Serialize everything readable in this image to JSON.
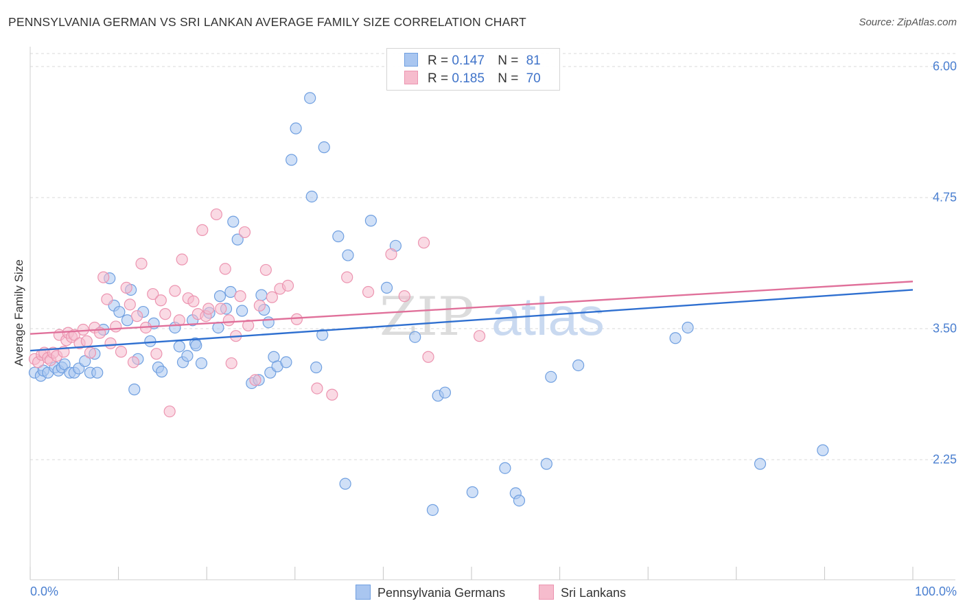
{
  "title": "PENNSYLVANIA GERMAN VS SRI LANKAN AVERAGE FAMILY SIZE CORRELATION CHART",
  "source": "Source: ZipAtlas.com",
  "watermark": "ZIPatlas",
  "colors": {
    "blue_fill": "#a9c6f0",
    "blue_stroke": "#6f9fe0",
    "blue_line": "#2e6fd0",
    "pink_fill": "#f6bccd",
    "pink_stroke": "#ec94b0",
    "pink_line": "#e0709a",
    "tick_text": "#4a7fd0",
    "grid": "#d9d9d9"
  },
  "legend": {
    "r1_label": "R =",
    "r1_value": "0.147",
    "n1_label": "N =",
    "n1_value": "81",
    "r2_label": "R =",
    "r2_value": "0.185",
    "n2_label": "N =",
    "n2_value": "70"
  },
  "bottom_legend": {
    "series1": "Pennsylvania Germans",
    "series2": "Sri Lankans"
  },
  "axis_text": {
    "ylabel": "Average Family Size",
    "x_min": "0.0%",
    "x_max": "100.0%",
    "y_ticks": [
      "6.00",
      "4.75",
      "3.50",
      "2.25"
    ]
  },
  "chart_data": {
    "type": "scatter",
    "title": "PENNSYLVANIA GERMAN VS SRI LANKAN AVERAGE FAMILY SIZE CORRELATION CHART",
    "xlabel": "",
    "ylabel": "Average Family Size",
    "xlim": [
      0,
      100
    ],
    "ylim": [
      1.25,
      6.25
    ],
    "y_ticks": [
      6.0,
      4.75,
      3.5,
      2.25
    ],
    "grid": true,
    "legend_placement": "top-center",
    "series": [
      {
        "name": "Pennsylvania Germans",
        "r": 0.147,
        "n": 81,
        "trend": [
          [
            0,
            3.29
          ],
          [
            100,
            3.87
          ]
        ],
        "x": [
          0.5,
          1.2,
          1.5,
          2,
          2.8,
          3.2,
          3.6,
          3.9,
          4.5,
          5,
          5.5,
          6.2,
          6.8,
          7.3,
          7.6,
          8.3,
          9,
          9.5,
          10.1,
          11,
          11.4,
          11.8,
          12.2,
          12.8,
          13.6,
          14,
          14.5,
          14.9,
          16.4,
          16.9,
          17.3,
          17.8,
          18.4,
          18.7,
          18.8,
          19.4,
          20.3,
          21.3,
          21.5,
          22.2,
          22.7,
          23,
          23.5,
          24,
          25.1,
          25.9,
          26.2,
          26.5,
          27,
          27.2,
          27.6,
          28,
          29,
          29.6,
          30.1,
          31.7,
          31.9,
          32.4,
          33.1,
          33.3,
          34.9,
          35.7,
          36,
          38.6,
          40.4,
          41.4,
          43.6,
          45.6,
          46.2,
          47,
          50.1,
          53.8,
          55,
          55.4,
          58.5,
          59,
          62.1,
          73.1,
          74.5,
          82.7,
          89.8
        ],
        "y": [
          3.08,
          3.05,
          3.1,
          3.08,
          3.13,
          3.1,
          3.13,
          3.16,
          3.08,
          3.08,
          3.12,
          3.19,
          3.08,
          3.26,
          3.08,
          3.49,
          3.98,
          3.72,
          3.66,
          3.58,
          3.87,
          2.92,
          3.21,
          3.66,
          3.38,
          3.55,
          3.13,
          3.09,
          3.51,
          3.33,
          3.18,
          3.24,
          3.58,
          3.36,
          3.34,
          3.17,
          3.65,
          3.51,
          3.81,
          3.69,
          3.85,
          4.52,
          4.35,
          3.67,
          2.98,
          3.01,
          3.82,
          3.68,
          3.56,
          3.08,
          3.23,
          3.14,
          3.18,
          5.11,
          5.41,
          5.7,
          4.76,
          3.13,
          3.44,
          5.23,
          4.38,
          2.02,
          4.2,
          4.53,
          3.89,
          4.29,
          3.42,
          1.77,
          2.86,
          2.89,
          1.94,
          2.17,
          1.93,
          1.86,
          2.21,
          3.04,
          3.15,
          3.41,
          3.51,
          2.21,
          2.34
        ]
      },
      {
        "name": "Sri Lankans",
        "r": 0.185,
        "n": 70,
        "trend": [
          [
            0,
            3.45
          ],
          [
            100,
            3.95
          ]
        ],
        "x": [
          0.5,
          0.9,
          1.3,
          1.6,
          2,
          2.3,
          2.6,
          3,
          3.3,
          3.8,
          4.1,
          4.3,
          4.7,
          5,
          5.6,
          6,
          6.4,
          6.8,
          7.3,
          7.9,
          8.3,
          8.7,
          9.1,
          9.7,
          10.3,
          10.9,
          11.3,
          11.7,
          12.1,
          12.6,
          13.1,
          13.9,
          14.3,
          14.8,
          15.3,
          15.8,
          16.4,
          16.9,
          17.2,
          17.9,
          18.5,
          19,
          19.5,
          19.9,
          20.2,
          21.1,
          21.6,
          22.1,
          22.5,
          22.8,
          23.3,
          23.8,
          24.3,
          24.7,
          25.5,
          26,
          26.7,
          27.4,
          28.3,
          29.2,
          30.2,
          32.5,
          34.2,
          35.9,
          38.3,
          40.9,
          42.4,
          44.6,
          45.1,
          50.9
        ],
        "y": [
          3.21,
          3.18,
          3.25,
          3.27,
          3.22,
          3.2,
          3.27,
          3.24,
          3.44,
          3.28,
          3.39,
          3.46,
          3.42,
          3.44,
          3.36,
          3.49,
          3.38,
          3.27,
          3.51,
          3.46,
          3.99,
          3.78,
          3.36,
          3.52,
          3.28,
          3.89,
          3.73,
          3.18,
          3.62,
          4.12,
          3.51,
          3.83,
          3.26,
          3.77,
          3.64,
          2.71,
          3.86,
          3.58,
          4.16,
          3.79,
          3.76,
          3.64,
          4.44,
          3.62,
          3.69,
          4.59,
          3.69,
          4.07,
          3.58,
          3.17,
          3.43,
          3.81,
          4.42,
          3.53,
          3.01,
          3.72,
          4.06,
          3.8,
          3.88,
          3.91,
          3.59,
          2.93,
          2.87,
          3.99,
          3.85,
          4.21,
          3.81,
          4.32,
          3.23,
          3.43
        ]
      }
    ]
  }
}
